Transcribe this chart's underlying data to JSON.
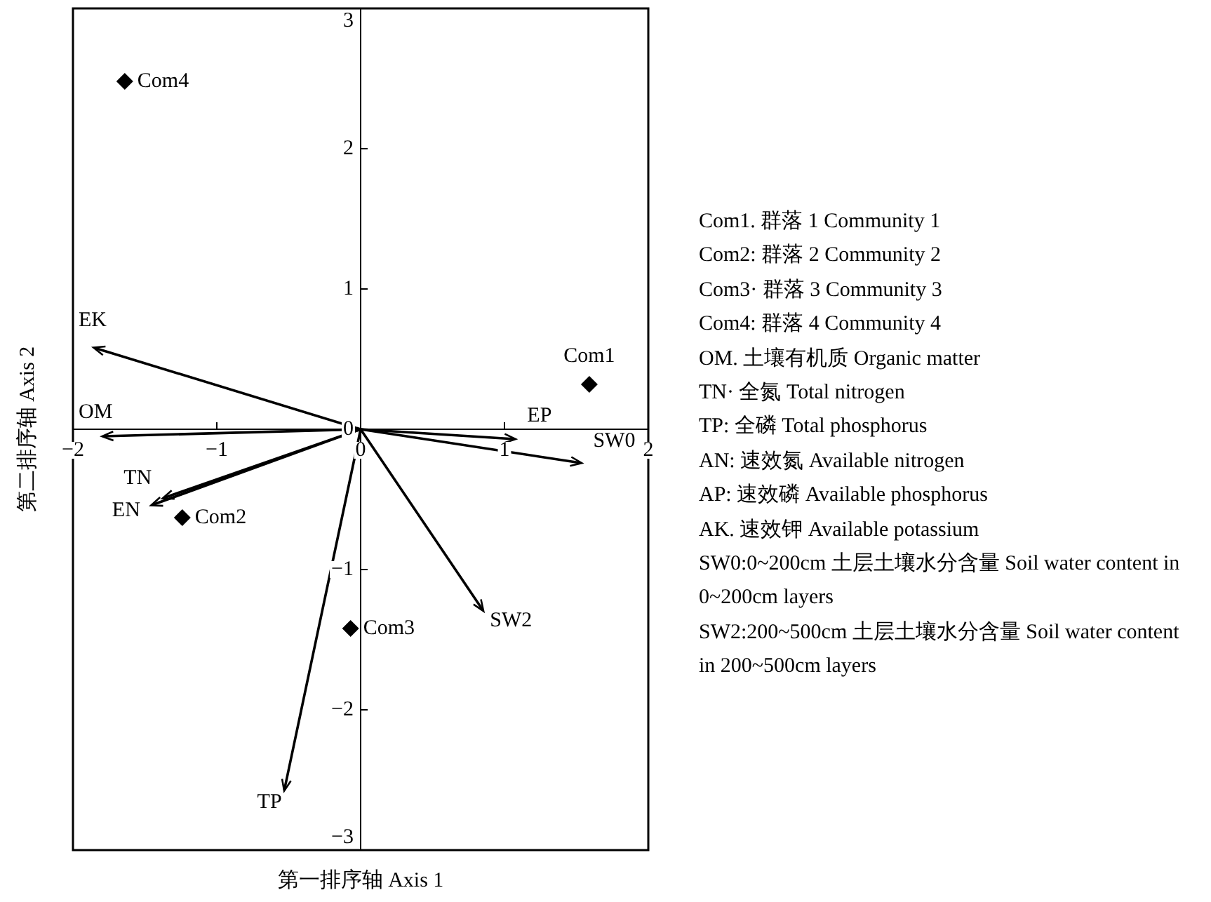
{
  "chart_data": {
    "type": "scatter",
    "xlabel": "第一排序轴 Axis 1",
    "ylabel": "第二排序轴 Axis 2",
    "xlim": [
      -2,
      2
    ],
    "ylim": [
      -3,
      3
    ],
    "xticks": [
      -2,
      -1,
      0,
      1,
      2
    ],
    "yticks": [
      -3,
      -2,
      -1,
      0,
      1,
      2,
      3
    ],
    "marker": "diamond",
    "series": [
      {
        "name": "Com1",
        "type": "scatter",
        "color": "#000000",
        "x": [
          1.59
        ],
        "values": [
          0.32
        ]
      },
      {
        "name": "Com2",
        "type": "scatter",
        "color": "#000000",
        "x": [
          -1.24
        ],
        "values": [
          -0.63
        ]
      },
      {
        "name": "Com3",
        "type": "scatter",
        "color": "#000000",
        "x": [
          -0.07
        ],
        "values": [
          -1.42
        ]
      },
      {
        "name": "Com4",
        "type": "scatter",
        "color": "#000000",
        "x": [
          -1.64
        ],
        "values": [
          2.48
        ]
      },
      {
        "name": "EK",
        "type": "line",
        "marker": "none",
        "color": "#000000",
        "x": [
          0,
          -1.85
        ],
        "values": [
          0,
          0.58
        ]
      },
      {
        "name": "OM",
        "type": "line",
        "marker": "none",
        "color": "#000000",
        "x": [
          0,
          -1.79
        ],
        "values": [
          0,
          -0.05
        ]
      },
      {
        "name": "TN",
        "type": "line",
        "marker": "none",
        "color": "#000000",
        "x": [
          0,
          -1.37
        ],
        "values": [
          0,
          -0.49
        ]
      },
      {
        "name": "EN",
        "type": "line",
        "marker": "none",
        "color": "#000000",
        "x": [
          0,
          -1.45
        ],
        "values": [
          0,
          -0.54
        ]
      },
      {
        "name": "EP",
        "type": "line",
        "marker": "none",
        "color": "#000000",
        "x": [
          0,
          1.07
        ],
        "values": [
          0,
          -0.07
        ]
      },
      {
        "name": "SW0",
        "type": "line",
        "marker": "none",
        "color": "#000000",
        "x": [
          0,
          1.53
        ],
        "values": [
          0,
          -0.24
        ]
      },
      {
        "name": "SW2",
        "type": "line",
        "marker": "none",
        "color": "#000000",
        "x": [
          0,
          0.85
        ],
        "values": [
          0,
          -1.29
        ]
      },
      {
        "name": "TP",
        "type": "line",
        "marker": "none",
        "color": "#000000",
        "x": [
          0,
          -0.53
        ],
        "values": [
          0,
          -2.57
        ]
      }
    ],
    "annotations": [
      "Com1. 群落 1 Community 1",
      "Com2: 群落 2 Community 2",
      "Com3· 群落 3 Community 3",
      "Com4: 群落 4 Community 4",
      "OM. 土壤有机质 Organic matter",
      "TN· 全氮 Total nitrogen",
      "TP: 全磷 Total phosphorus",
      "AN: 速效氮 Available nitrogen",
      "AP: 速效磷 Available phosphorus",
      "AK. 速效钾 Available potassium",
      "SW0:0~200cm 土层土壤水分含量 Soil water content in 0~200cm layers",
      "SW2:200~500cm 土层土壤水分含量 Soil water content in 200~500cm layers"
    ]
  }
}
